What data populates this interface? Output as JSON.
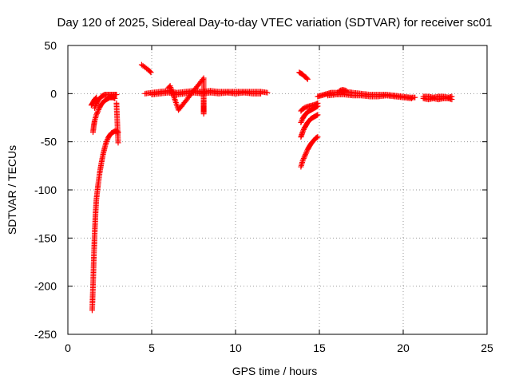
{
  "chart_data": {
    "type": "scatter",
    "title": "Day 120 of 2025, Sidereal Day-to-day VTEC variation (SDTVAR) for receiver sc01",
    "xlabel": "GPS time / hours",
    "ylabel": "SDTVAR / TECUs",
    "xlim": [
      0,
      25
    ],
    "ylim": [
      -250,
      50
    ],
    "xticks": [
      "0",
      "5",
      "10",
      "15",
      "20",
      "25"
    ],
    "yticks": [
      "50",
      "0",
      "-50",
      "-100",
      "-150",
      "-200",
      "-250"
    ],
    "xtick_values": [
      0,
      5,
      10,
      15,
      20,
      25
    ],
    "ytick_values": [
      50,
      0,
      -50,
      -100,
      -150,
      -200,
      -250
    ],
    "grid": true,
    "marker": "+",
    "color": "#ff0000",
    "series": [
      {
        "name": "SDTVAR",
        "segments": [
          {
            "x": [
              1.45,
              1.5,
              1.55,
              1.6,
              1.65,
              1.7,
              1.8,
              1.9,
              2.0,
              2.1,
              2.2,
              2.3
            ],
            "y": [
              -225,
              -200,
              -170,
              -145,
              -125,
              -110,
              -95,
              -82,
              -72,
              -63,
              -56,
              -50
            ]
          },
          {
            "x": [
              2.3,
              2.4,
              2.5,
              2.6,
              2.7,
              2.8,
              2.9,
              3.0
            ],
            "y": [
              -50,
              -46,
              -43,
              -41,
              -40,
              -39,
              -39,
              -40
            ]
          },
          {
            "x": [
              1.5,
              1.55,
              1.6,
              1.7,
              1.8,
              1.9,
              2.0,
              2.1,
              2.2,
              2.3,
              2.4,
              2.5,
              2.6,
              2.7,
              2.8
            ],
            "y": [
              -40,
              -33,
              -28,
              -22,
              -18,
              -14,
              -11,
              -9,
              -7,
              -6,
              -5,
              -4,
              -4,
              -4,
              -5
            ]
          },
          {
            "x": [
              1.6,
              1.7,
              1.8,
              1.9,
              2.0,
              2.1,
              2.2,
              2.4,
              2.6,
              2.8,
              2.9
            ],
            "y": [
              -15,
              -10,
              -7,
              -5,
              -3,
              -2,
              -1,
              -1,
              -1,
              -1,
              -1
            ]
          },
          {
            "x": [
              1.4,
              1.5,
              1.6,
              1.7
            ],
            "y": [
              -12,
              -9,
              -6,
              -4
            ]
          },
          {
            "x": [
              2.9,
              3.0
            ],
            "y": [
              -10,
              -51
            ]
          },
          {
            "x": [
              4.4,
              4.55,
              4.7,
              4.85,
              4.95
            ],
            "y": [
              30,
              28,
              26,
              24,
              22
            ]
          },
          {
            "x": [
              4.6,
              5.0,
              5.5,
              6.0,
              6.5,
              7.0,
              7.5,
              8.0,
              8.5,
              9.0,
              9.5,
              10.0,
              10.5,
              11.0,
              11.5,
              11.9
            ],
            "y": [
              0,
              1,
              2,
              3,
              1,
              2,
              3,
              2,
              3,
              2,
              2,
              2,
              2,
              2,
              2,
              1
            ]
          },
          {
            "x": [
              5.0,
              5.5,
              6.0,
              6.5,
              7.0,
              7.5,
              8.0,
              8.5,
              9.0,
              9.5,
              10.0,
              10.5,
              11.0,
              11.5
            ],
            "y": [
              -1,
              0,
              1,
              -1,
              0,
              1,
              0,
              1,
              0,
              1,
              0,
              1,
              0,
              0
            ]
          },
          {
            "x": [
              6.0,
              6.1,
              6.6,
              8.1,
              8.1,
              8.1,
              8.1
            ],
            "y": [
              6,
              8,
              -17,
              16,
              -17,
              -21,
              1
            ]
          },
          {
            "x": [
              13.8,
              13.9,
              14.0,
              14.1,
              14.2,
              14.3
            ],
            "y": [
              22,
              21,
              20,
              18,
              17,
              15
            ]
          },
          {
            "x": [
              13.9,
              14.0,
              14.1,
              14.2,
              14.3,
              14.4,
              14.5,
              14.6,
              14.7,
              14.8,
              14.9
            ],
            "y": [
              -76,
              -70,
              -66,
              -62,
              -58,
              -55,
              -52,
              -50,
              -48,
              -46,
              -45
            ]
          },
          {
            "x": [
              13.9,
              14.0,
              14.1,
              14.2,
              14.3,
              14.4,
              14.5,
              14.6,
              14.7,
              14.8,
              14.9
            ],
            "y": [
              -45,
              -40,
              -36,
              -33,
              -30,
              -28,
              -26,
              -25,
              -24,
              -23,
              -22
            ]
          },
          {
            "x": [
              13.9,
              14.0,
              14.1,
              14.2,
              14.3,
              14.4,
              14.5,
              14.6,
              14.7,
              14.8,
              14.9
            ],
            "y": [
              -30,
              -26,
              -23,
              -21,
              -19,
              -18,
              -17,
              -16,
              -15,
              -14,
              -13
            ]
          },
          {
            "x": [
              13.9,
              14.0,
              14.2,
              14.4,
              14.6,
              14.8,
              14.9
            ],
            "y": [
              -18,
              -16,
              -14,
              -13,
              -12,
              -11,
              -10
            ]
          },
          {
            "x": [
              14.9,
              15.1,
              15.3,
              15.5,
              15.7,
              16.0,
              16.3,
              16.6,
              17.0,
              17.5,
              18.0,
              18.5,
              19.0,
              19.5,
              20.0,
              20.4,
              20.7
            ],
            "y": [
              -3,
              -2,
              -1,
              0,
              1,
              1,
              2,
              2,
              1,
              0,
              -1,
              -1,
              -1,
              -2,
              -3,
              -4,
              -4
            ]
          },
          {
            "x": [
              15.5,
              16.0,
              16.5,
              17.0,
              17.5,
              18.0,
              18.5,
              19.0,
              19.5,
              20.0,
              20.5
            ],
            "y": [
              -2,
              -1,
              -1,
              -2,
              -2,
              -3,
              -3,
              -2,
              -3,
              -4,
              -5
            ]
          },
          {
            "x": [
              16.2,
              16.4,
              16.6
            ],
            "y": [
              3,
              4,
              3
            ]
          },
          {
            "x": [
              21.2,
              21.5,
              21.8,
              22.1,
              22.4,
              22.7,
              22.9
            ],
            "y": [
              -3,
              -3,
              -4,
              -3,
              -3,
              -4,
              -3
            ]
          },
          {
            "x": [
              21.2,
              21.5,
              21.8,
              22.1,
              22.4,
              22.7,
              22.9
            ],
            "y": [
              -5,
              -6,
              -5,
              -6,
              -5,
              -5,
              -6
            ]
          }
        ]
      }
    ]
  }
}
